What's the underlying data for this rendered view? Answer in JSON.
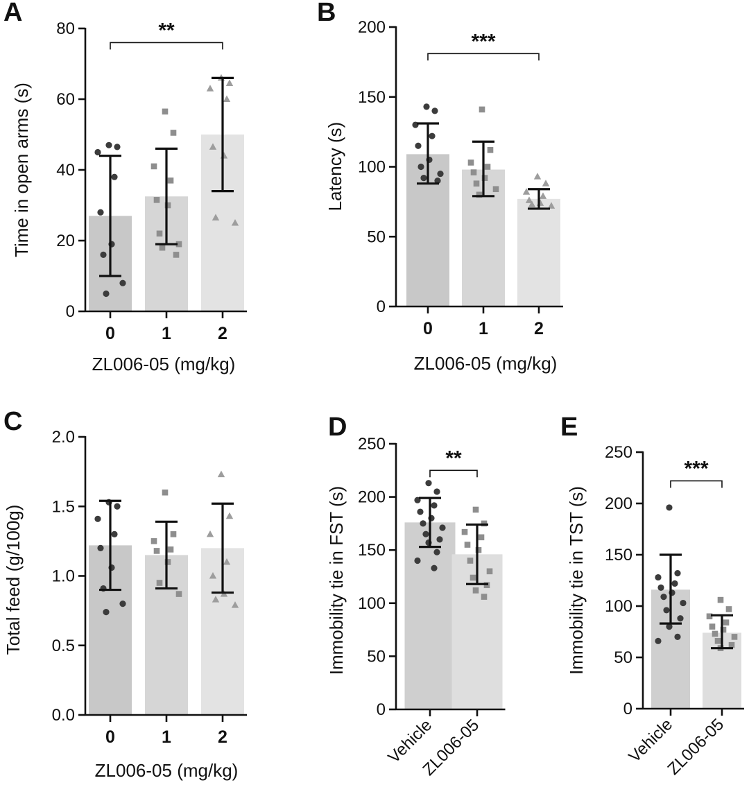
{
  "chart_data": [
    {
      "panel": "A",
      "type": "bar",
      "xlabel": "ZL006-05 (mg/kg)",
      "ylabel": "Time in open arms (s)",
      "ylim": [
        0,
        80
      ],
      "yticks": [
        0,
        20,
        40,
        60,
        80
      ],
      "categories": [
        "0",
        "1",
        "2"
      ],
      "values": [
        27,
        32.5,
        50
      ],
      "errors": [
        [
          10,
          44
        ],
        [
          19,
          46
        ],
        [
          34,
          66
        ]
      ],
      "marker_types": [
        "circle",
        "square",
        "triangle"
      ],
      "points": [
        [
          47,
          46.5,
          45,
          38,
          28,
          19,
          16,
          8,
          5
        ],
        [
          56.5,
          50.5,
          41,
          37,
          31.5,
          30,
          22,
          19,
          18,
          16
        ],
        [
          66,
          64.5,
          63,
          60,
          46.5,
          44,
          26.5,
          25
        ]
      ],
      "significance": {
        "from": 0,
        "to": 2,
        "label": "**",
        "level": 76
      }
    },
    {
      "panel": "B",
      "type": "bar",
      "xlabel": "ZL006-05 (mg/kg)",
      "ylabel": "Latency (s)",
      "ylim": [
        0,
        200
      ],
      "yticks": [
        0,
        50,
        100,
        150,
        200
      ],
      "categories": [
        "0",
        "1",
        "2"
      ],
      "values": [
        109,
        98,
        77
      ],
      "errors": [
        [
          88,
          131
        ],
        [
          79,
          118
        ],
        [
          70,
          84
        ]
      ],
      "marker_types": [
        "circle",
        "square",
        "triangle"
      ],
      "points": [
        [
          143,
          140,
          130,
          122,
          115,
          105,
          100,
          95,
          92,
          90
        ],
        [
          141,
          112,
          103,
          100,
          96,
          92,
          88,
          84,
          80
        ],
        [
          93,
          88,
          82,
          79,
          76,
          74,
          73,
          72
        ]
      ],
      "significance": {
        "from": 0,
        "to": 2,
        "label": "***",
        "level": 181
      }
    },
    {
      "panel": "C",
      "type": "bar",
      "xlabel": "ZL006-05 (mg/kg)",
      "ylabel": "Total feed (g/100g)",
      "ylim": [
        0,
        2.0
      ],
      "yticks": [
        "0.0",
        "0.5",
        "1.0",
        "1.5",
        "2.0"
      ],
      "categories": [
        "0",
        "1",
        "2"
      ],
      "values": [
        1.22,
        1.15,
        1.2
      ],
      "errors": [
        [
          0.9,
          1.54
        ],
        [
          0.91,
          1.39
        ],
        [
          0.88,
          1.52
        ]
      ],
      "marker_types": [
        "circle",
        "square",
        "triangle"
      ],
      "points": [
        [
          1.53,
          1.5,
          1.41,
          1.3,
          1.2,
          1.06,
          0.91,
          0.8,
          0.74
        ],
        [
          1.6,
          1.3,
          1.25,
          1.19,
          1.18,
          1.1,
          0.95,
          0.87
        ],
        [
          1.73,
          1.43,
          1.3,
          1.1,
          1.0,
          0.87,
          0.83,
          0.79
        ]
      ]
    },
    {
      "panel": "D",
      "type": "bar",
      "xlabel": "",
      "ylabel": "Immobility tie in FST (s)",
      "ylim": [
        0,
        250
      ],
      "yticks": [
        0,
        50,
        100,
        150,
        200,
        250
      ],
      "categories": [
        "Vehicle",
        "ZL006-05"
      ],
      "values": [
        176,
        146
      ],
      "errors": [
        [
          153,
          199
        ],
        [
          118,
          174
        ]
      ],
      "marker_types": [
        "circle",
        "square"
      ],
      "points": [
        [
          213,
          205,
          197,
          192,
          186,
          180,
          175,
          171,
          165,
          160,
          157,
          148,
          140,
          133
        ],
        [
          188,
          175,
          167,
          162,
          155,
          150,
          140,
          130,
          124,
          117,
          112,
          106
        ]
      ],
      "significance": {
        "from": 0,
        "to": 1,
        "label": "**",
        "level": 225
      }
    },
    {
      "panel": "E",
      "type": "bar",
      "xlabel": "",
      "ylabel": "Immobility tie in TST (s)",
      "ylim": [
        0,
        250
      ],
      "yticks": [
        0,
        50,
        100,
        150,
        200,
        250
      ],
      "categories": [
        "Vehicle",
        "ZL006-05"
      ],
      "values": [
        116,
        74
      ],
      "errors": [
        [
          83,
          150
        ],
        [
          59,
          91
        ]
      ],
      "marker_types": [
        "circle",
        "square"
      ],
      "points": [
        [
          196,
          132,
          128,
          122,
          118,
          113,
          109,
          103,
          96,
          88,
          80,
          70,
          66
        ],
        [
          106,
          97,
          90,
          84,
          80,
          77,
          73,
          70,
          66,
          62,
          59
        ]
      ],
      "significance": {
        "from": 0,
        "to": 1,
        "label": "***",
        "level": 222
      }
    }
  ],
  "colors": {
    "bars_three": [
      "#c8c8c8",
      "#d6d6d6",
      "#e3e3e3"
    ],
    "bars_two": [
      "#cfcfcf",
      "#dedede"
    ],
    "markers": [
      "#3c3c3c",
      "#8e8e8e",
      "#9d9d9d"
    ],
    "axis": "#111111"
  }
}
